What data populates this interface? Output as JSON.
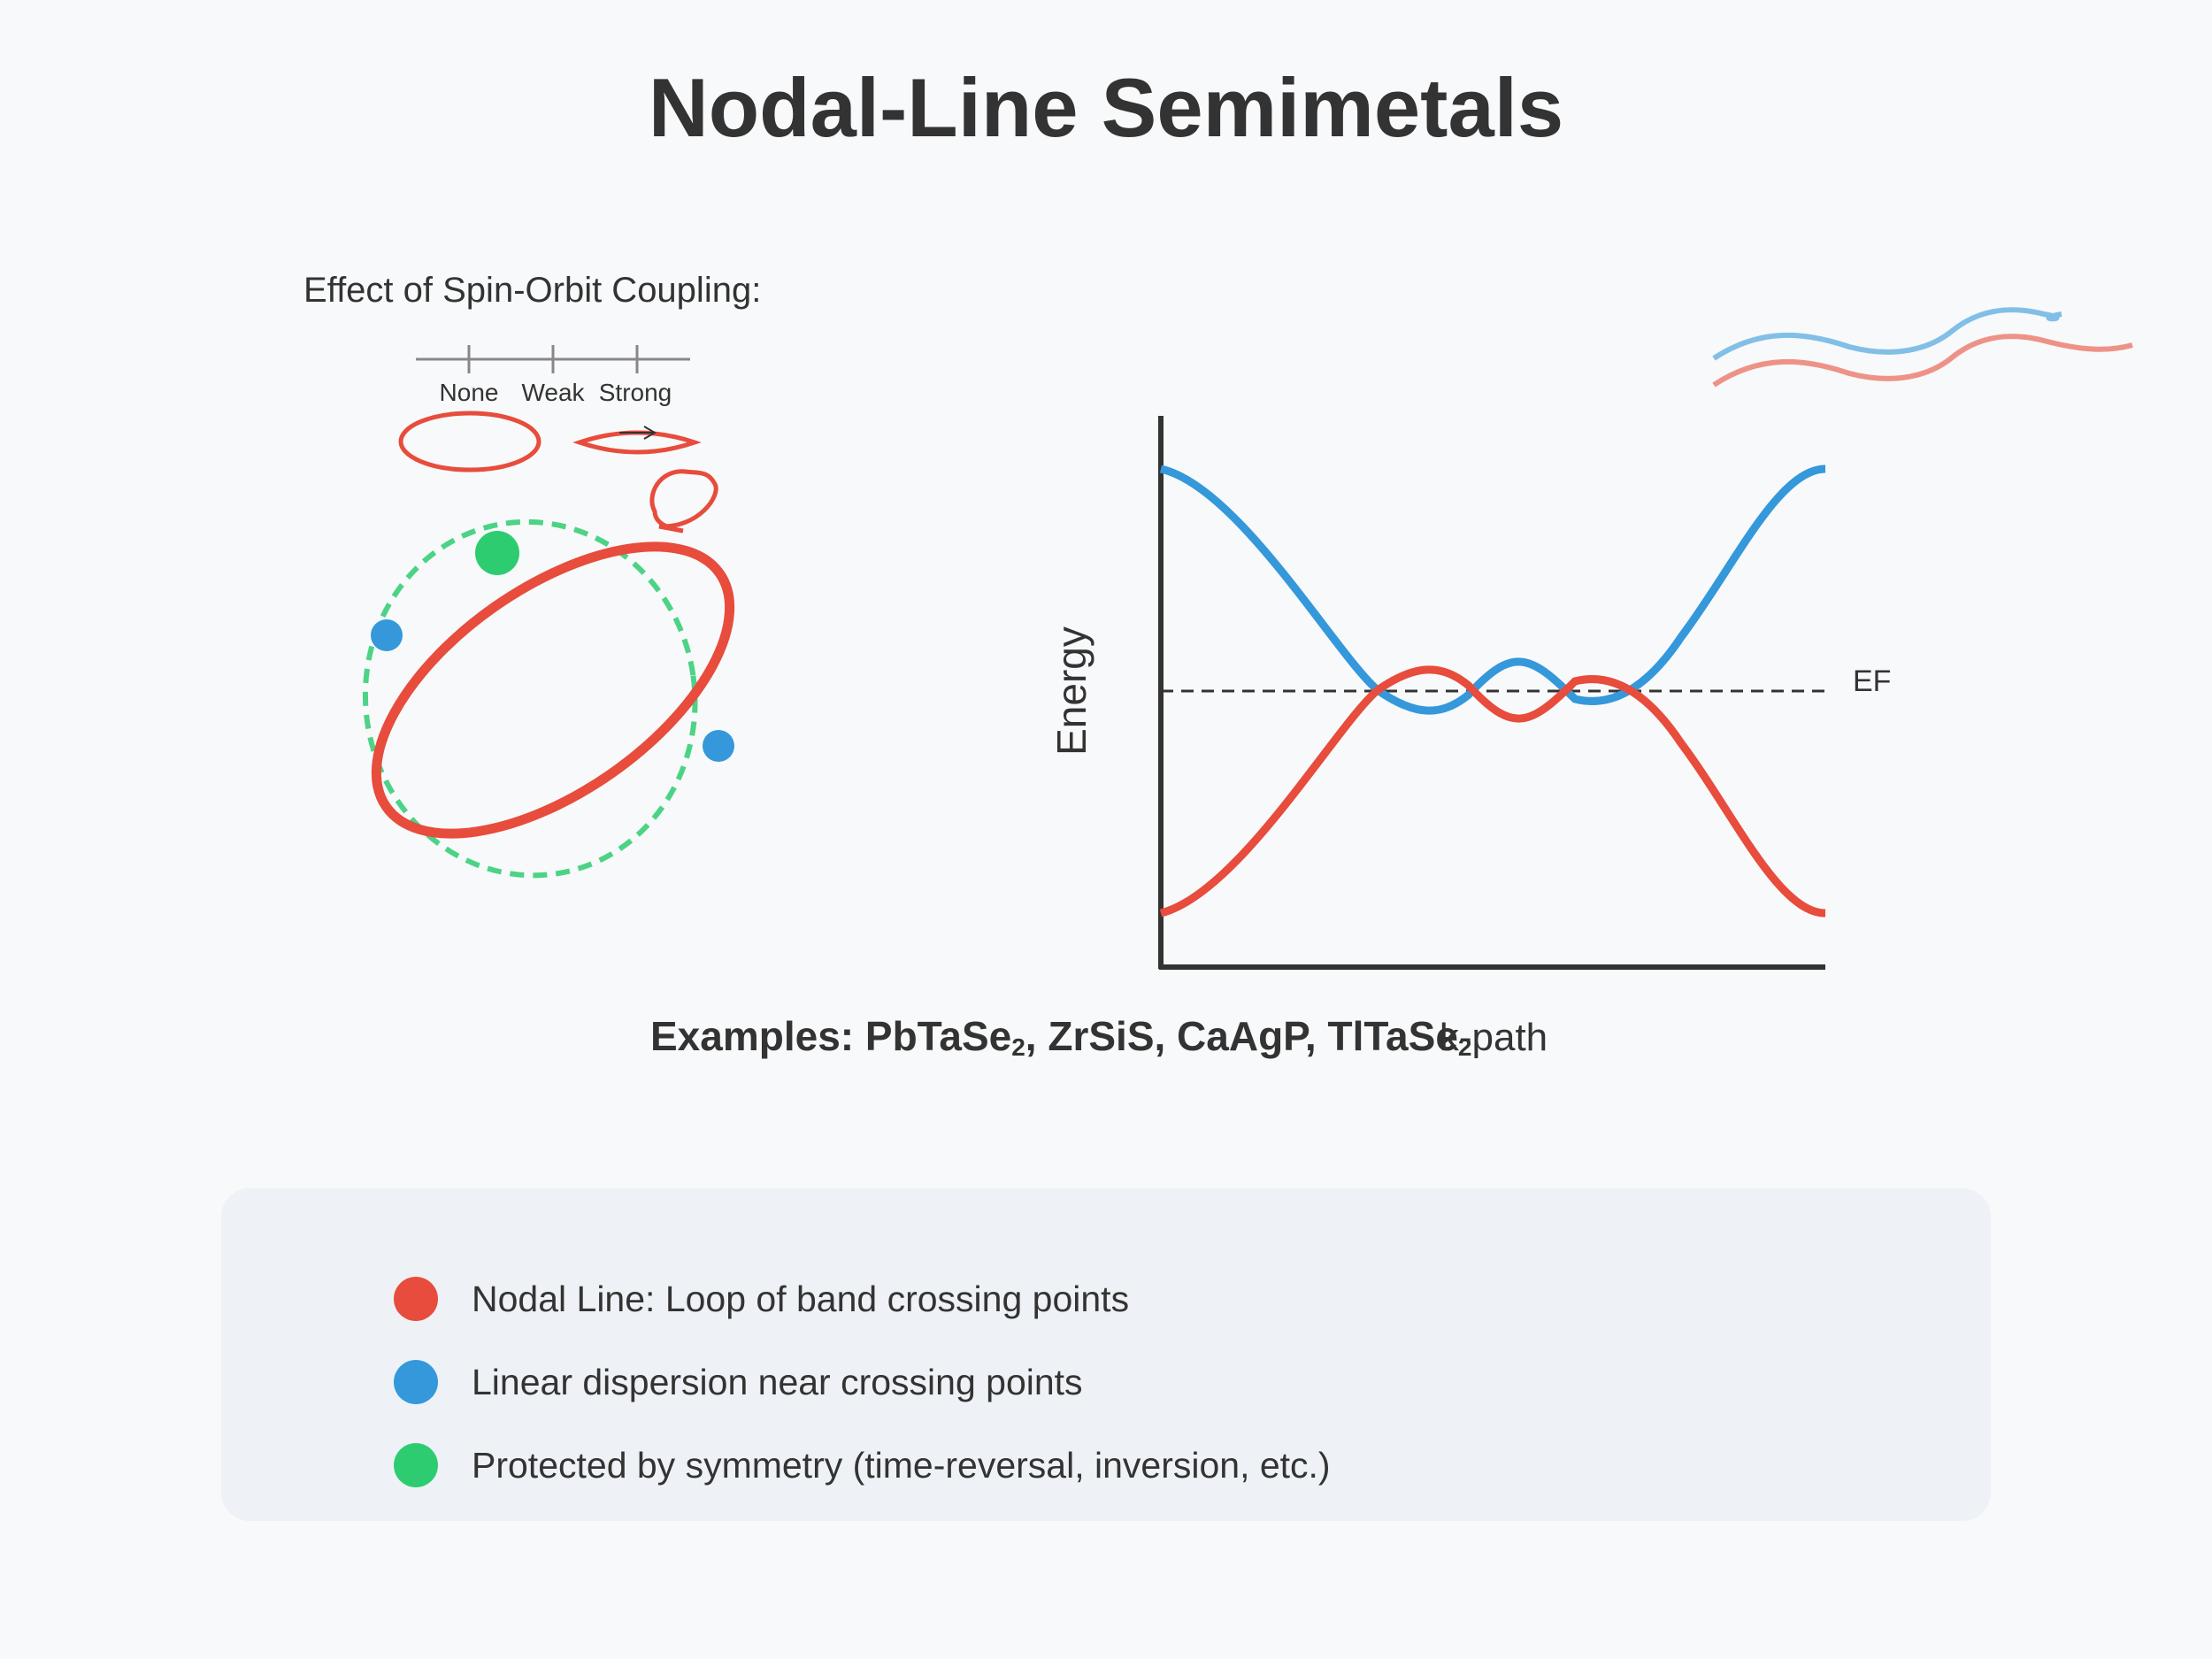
{
  "title": "Nodal-Line Semimetals",
  "soc_panel": {
    "heading": "Effect of Spin-Orbit Coupling:",
    "scale_labels": [
      "None",
      "Weak",
      "Strong"
    ]
  },
  "band_plot": {
    "ylabel": "Energy",
    "xlabel": "k-path",
    "fermi_label": "EF"
  },
  "examples": {
    "prefix": "Examples: PbTaSe",
    "sub1": "2",
    "middle": ", ZrSiS, CaAgP, TlTaSe",
    "sub2": "2"
  },
  "legend": [
    {
      "text": "Nodal Line: Loop of band crossing points",
      "color": "#e74c3c"
    },
    {
      "text": "Linear dispersion near crossing points",
      "color": "#3498db"
    },
    {
      "text": "Protected by symmetry (time-reversal, inversion, etc.)",
      "color": "#2ecc71"
    }
  ],
  "colors": {
    "red": "#e74c3c",
    "blue": "#3498db",
    "green": "#2ecc71",
    "dark": "#333333"
  }
}
